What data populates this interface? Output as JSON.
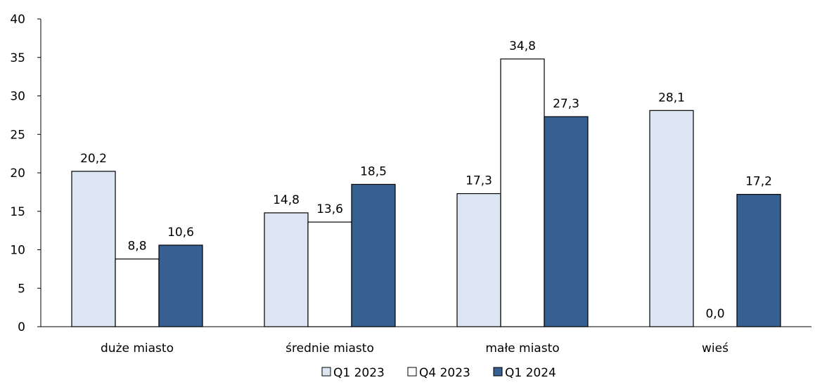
{
  "chart_data": {
    "type": "bar",
    "title": "",
    "xlabel": "",
    "ylabel": "",
    "ylim": [
      0,
      40
    ],
    "yticks": [
      0,
      5,
      10,
      15,
      20,
      25,
      30,
      35,
      40
    ],
    "categories": [
      "duże miasto",
      "średnie miasto",
      "małe miasto",
      "wieś"
    ],
    "series": [
      {
        "name": "Q1 2023",
        "color": "#dce6f2",
        "values": [
          20.2,
          14.8,
          17.3,
          28.1
        ]
      },
      {
        "name": "Q4 2023",
        "color": "#ffffff",
        "values": [
          8.8,
          13.6,
          34.8,
          0.0
        ]
      },
      {
        "name": "Q1 2024",
        "color": "#376092",
        "values": [
          10.6,
          18.5,
          27.3,
          17.2
        ]
      }
    ],
    "data_labels": [
      [
        "20,2",
        "14,8",
        "17,3",
        "28,1"
      ],
      [
        "8,8",
        "13,6",
        "34,8",
        "0,0"
      ],
      [
        "10,6",
        "18,5",
        "27,3",
        "17,2"
      ]
    ],
    "grid": false,
    "legend_position": "bottom"
  }
}
